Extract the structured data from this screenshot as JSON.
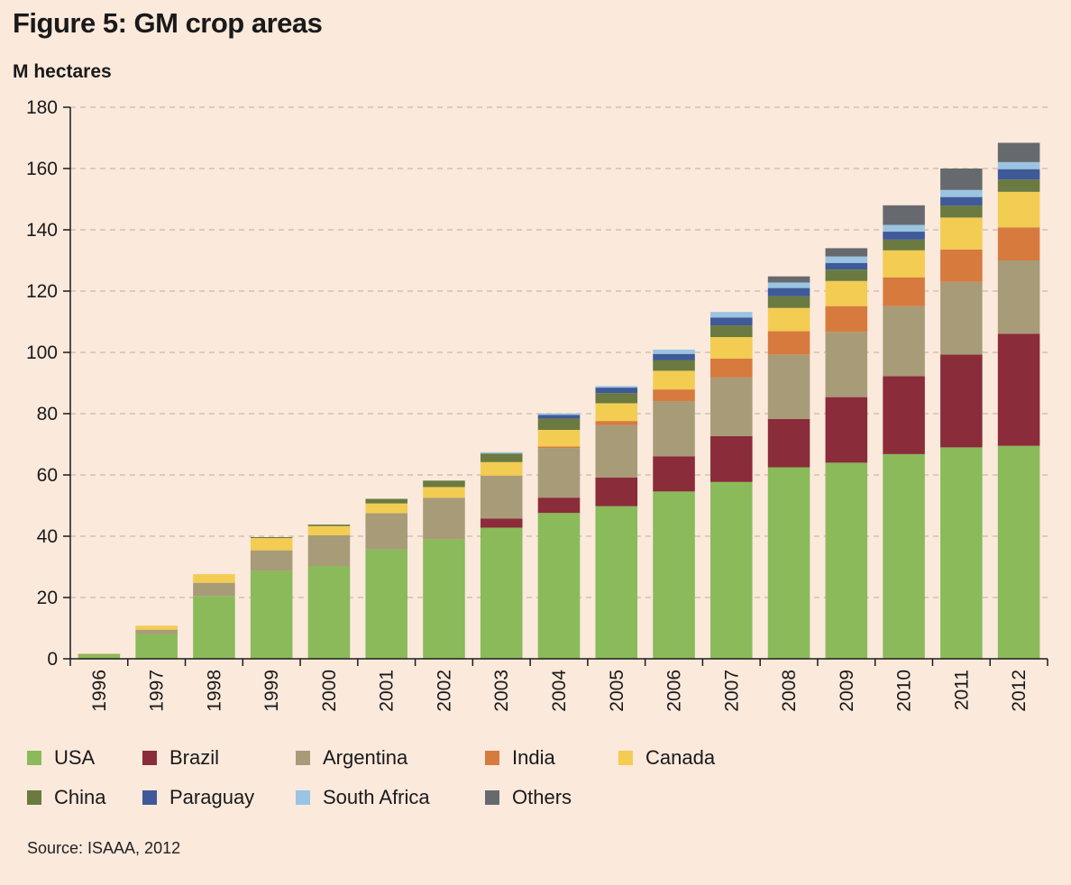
{
  "title": "Figure 5: GM crop areas",
  "source": "Source: ISAAA, 2012",
  "chart_data": {
    "type": "bar",
    "stacked": true,
    "title": "Figure 5: GM crop areas",
    "ylabel": "M hectares",
    "xlabel": "",
    "ylim": [
      0,
      180
    ],
    "yticks": [
      0,
      20,
      40,
      60,
      80,
      100,
      120,
      140,
      160,
      180
    ],
    "grid": true,
    "legend_position": "bottom",
    "categories": [
      "1996",
      "1997",
      "1998",
      "1999",
      "2000",
      "2001",
      "2002",
      "2003",
      "2004",
      "2005",
      "2006",
      "2007",
      "2008",
      "2009",
      "2010",
      "2011",
      "2012"
    ],
    "series": [
      {
        "name": "USA",
        "color": "#8aba5a",
        "values": [
          1.5,
          8.1,
          20.5,
          28.7,
          30.3,
          35.7,
          39.0,
          42.8,
          47.6,
          49.8,
          54.6,
          57.7,
          62.5,
          64.0,
          66.8,
          69.0,
          69.5
        ]
      },
      {
        "name": "Brazil",
        "color": "#8a2c3a",
        "values": [
          0,
          0,
          0,
          0,
          0,
          0,
          0,
          3.0,
          5.0,
          9.4,
          11.5,
          15.0,
          15.8,
          21.4,
          25.4,
          30.3,
          36.6
        ]
      },
      {
        "name": "Argentina",
        "color": "#a89b78",
        "values": [
          0.1,
          1.4,
          4.3,
          6.7,
          10.0,
          11.8,
          13.5,
          13.9,
          16.2,
          17.1,
          18.0,
          19.1,
          21.0,
          21.3,
          22.9,
          23.7,
          23.9
        ]
      },
      {
        "name": "India",
        "color": "#d77a3e",
        "values": [
          0,
          0,
          0,
          0,
          0,
          0,
          0.05,
          0.1,
          0.5,
          1.3,
          3.8,
          6.2,
          7.6,
          8.4,
          9.4,
          10.6,
          10.8
        ]
      },
      {
        "name": "Canada",
        "color": "#f3cc52",
        "values": [
          0.1,
          1.3,
          2.8,
          4.0,
          3.0,
          3.2,
          3.5,
          4.4,
          5.4,
          5.8,
          6.1,
          7.0,
          7.6,
          8.2,
          8.8,
          10.4,
          11.6
        ]
      },
      {
        "name": "China",
        "color": "#6a7a40",
        "values": [
          0,
          0,
          0,
          0.3,
          0.5,
          1.5,
          2.1,
          2.8,
          3.7,
          3.3,
          3.5,
          3.8,
          3.8,
          3.7,
          3.5,
          3.9,
          4.0
        ]
      },
      {
        "name": "Paraguay",
        "color": "#3e5a98",
        "values": [
          0,
          0,
          0,
          0,
          0,
          0,
          0,
          0,
          1.2,
          1.8,
          2.0,
          2.6,
          2.7,
          2.2,
          2.6,
          2.8,
          3.4
        ]
      },
      {
        "name": "South Africa",
        "color": "#9ac4e2",
        "values": [
          0,
          0,
          0,
          0,
          0,
          0,
          0,
          0.4,
          0.5,
          0.5,
          1.4,
          1.8,
          1.8,
          2.1,
          2.2,
          2.3,
          2.3
        ]
      },
      {
        "name": "Others",
        "color": "#666a6e",
        "values": [
          0,
          0,
          0,
          0,
          0,
          0,
          0,
          0,
          0,
          0,
          0,
          0,
          2.0,
          2.7,
          6.4,
          7.0,
          6.3
        ]
      }
    ]
  }
}
